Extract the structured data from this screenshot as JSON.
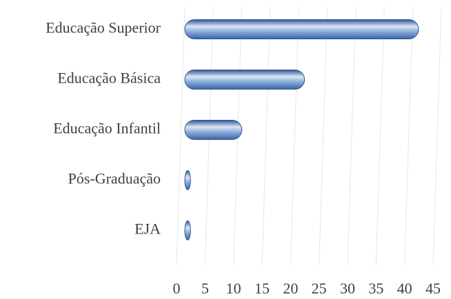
{
  "chart_data": {
    "type": "bar",
    "orientation": "horizontal",
    "categories": [
      "Educação Superior",
      "Educação Básica",
      "Educação Infantil",
      "Pós-Graduação",
      "EJA"
    ],
    "values": [
      41,
      21,
      10,
      1,
      1
    ],
    "color": "#4f81bd",
    "xlim": [
      0,
      45
    ],
    "xticks": [
      0,
      5,
      10,
      15,
      20,
      25,
      30,
      35,
      40,
      45
    ],
    "grid": true
  }
}
